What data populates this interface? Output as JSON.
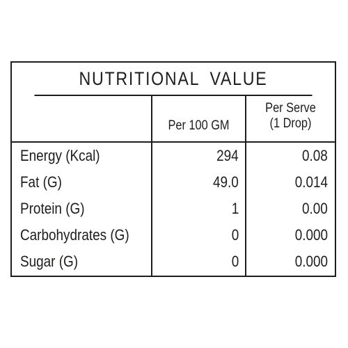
{
  "table": {
    "title": "NUTRITIONAL VALUE",
    "headers": {
      "col1": "Per 100 GM",
      "col2_line1": "Per Serve",
      "col2_line2": "(1 Drop)"
    },
    "rows": [
      {
        "label": "Energy (Kcal)",
        "per100": "294",
        "perServe": "0.08"
      },
      {
        "label": "Fat (G)",
        "per100": "49.0",
        "perServe": "0.014"
      },
      {
        "label": "Protein (G)",
        "per100": "1",
        "perServe": "0.00"
      },
      {
        "label": "Carbohydrates (G)",
        "per100": "0",
        "perServe": "0.000"
      },
      {
        "label": "Sugar (G)",
        "per100": "0",
        "perServe": "0.000"
      }
    ]
  }
}
